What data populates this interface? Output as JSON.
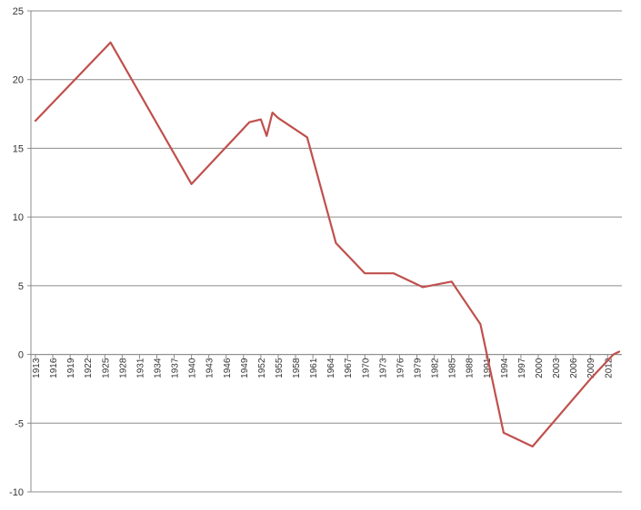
{
  "chart_data": {
    "type": "line",
    "title": "",
    "xlabel": "",
    "ylabel": "",
    "ylim": [
      -10,
      25
    ],
    "ytick_step": 5,
    "xlim": [
      1913,
      2014
    ],
    "y_ticks": [
      "-10",
      "-5",
      "0",
      "5",
      "10",
      "15",
      "20",
      "25"
    ],
    "x_ticks": [
      "1913",
      "1916",
      "1919",
      "1922",
      "1925",
      "1928",
      "1931",
      "1934",
      "1937",
      "1940",
      "1943",
      "1946",
      "1949",
      "1952",
      "1955",
      "1958",
      "1961",
      "1964",
      "1967",
      "1970",
      "1973",
      "1976",
      "1979",
      "1982",
      "1985",
      "1988",
      "1991",
      "1994",
      "1997",
      "2000",
      "2003",
      "2006",
      "2009",
      "2012"
    ],
    "grid": true,
    "legend": "none",
    "line_color": "#C0504D",
    "series": [
      {
        "x": [
          1913,
          1926,
          1940,
          1950,
          1952,
          1953,
          1954,
          1955,
          1960,
          1965,
          1970,
          1975,
          1980,
          1985,
          1990,
          1994,
          1999,
          2009,
          2013,
          2014
        ],
        "values": [
          17.0,
          22.7,
          12.4,
          16.9,
          17.1,
          15.9,
          17.6,
          17.2,
          15.8,
          8.1,
          5.9,
          5.9,
          4.9,
          5.3,
          2.2,
          -5.7,
          -6.7,
          -1.8,
          0.0,
          0.2
        ]
      }
    ]
  }
}
